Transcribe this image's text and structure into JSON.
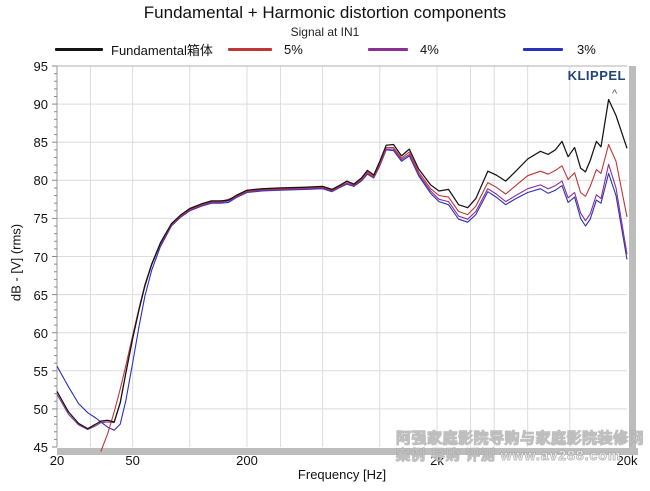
{
  "chart_data": {
    "type": "line",
    "title": "Fundamental + Harmonic distortion components",
    "subtitle": "Signal at IN1",
    "xlabel": "Frequency [Hz]",
    "ylabel": "dB - [V] (rms)",
    "x_scale": "log",
    "xlim": [
      20,
      20000
    ],
    "ylim": [
      45,
      95
    ],
    "grid": true,
    "legend_position": "top",
    "y_ticks": [
      95,
      90,
      85,
      80,
      75,
      70,
      65,
      60,
      55,
      50,
      45
    ],
    "x_tick_labels": [
      {
        "f": 20,
        "label": "20"
      },
      {
        "f": 50,
        "label": "50"
      },
      {
        "f": 200,
        "label": "200"
      },
      {
        "f": 2000,
        "label": "2k"
      },
      {
        "f": 20000,
        "label": "20k"
      }
    ],
    "grid_frequencies": [
      30,
      50,
      100,
      200,
      300,
      500,
      1000,
      2000,
      3000,
      4000,
      6000,
      10000
    ],
    "frequencies": [
      20,
      23,
      26,
      29,
      32,
      34,
      37,
      40,
      43,
      46,
      50,
      54,
      58,
      63,
      70,
      80,
      90,
      100,
      115,
      130,
      145,
      160,
      175,
      200,
      240,
      300,
      400,
      500,
      560,
      620,
      670,
      730,
      800,
      860,
      930,
      1000,
      1080,
      1180,
      1300,
      1430,
      1600,
      1850,
      2050,
      2300,
      2600,
      2900,
      3200,
      3700,
      4100,
      4600,
      5200,
      6000,
      7000,
      7700,
      8400,
      9100,
      9800,
      10600,
      11400,
      12100,
      12800,
      13800,
      14600,
      16000,
      17500,
      20000
    ],
    "series": [
      {
        "name": "Fundamental箱体",
        "color": "#141414",
        "values": [
          52.3,
          49.6,
          48.1,
          47.4,
          48.0,
          48.4,
          48.5,
          48.3,
          50.8,
          54.6,
          59.2,
          63.0,
          66.2,
          69.0,
          71.8,
          74.3,
          75.5,
          76.3,
          76.9,
          77.3,
          77.3,
          77.4,
          78.0,
          78.7,
          78.9,
          79.0,
          79.1,
          79.2,
          78.8,
          79.4,
          79.9,
          79.5,
          80.3,
          81.3,
          80.7,
          82.5,
          84.6,
          84.7,
          83.2,
          84.1,
          81.5,
          79.4,
          78.6,
          78.8,
          76.8,
          76.4,
          77.6,
          81.2,
          80.7,
          79.9,
          81.2,
          82.8,
          83.8,
          83.4,
          84.0,
          85.1,
          83.1,
          84.3,
          81.6,
          81.1,
          82.6,
          85.1,
          84.4,
          90.6,
          88.5,
          84.2
        ]
      },
      {
        "name": "5%",
        "color": "#c03636",
        "values": [
          null,
          null,
          null,
          null,
          null,
          44.4,
          46.8,
          49.6,
          52.6,
          55.6,
          59.6,
          63.2,
          66.3,
          69.0,
          71.7,
          74.2,
          75.4,
          76.2,
          76.8,
          77.2,
          77.2,
          77.5,
          77.9,
          78.6,
          78.8,
          78.9,
          79.0,
          79.1,
          78.7,
          79.3,
          79.8,
          79.4,
          80.1,
          81.1,
          80.5,
          82.2,
          84.3,
          84.3,
          82.9,
          83.7,
          81.1,
          78.9,
          78.0,
          77.8,
          75.9,
          75.5,
          76.6,
          79.7,
          79.1,
          78.2,
          79.3,
          80.6,
          81.2,
          80.8,
          81.3,
          81.9,
          80.1,
          81.0,
          78.4,
          77.9,
          79.2,
          81.4,
          80.9,
          84.7,
          82.5,
          75.2
        ]
      },
      {
        "name": "4%",
        "color": "#8b2f93",
        "values": [
          51.9,
          49.3,
          47.9,
          47.3,
          47.8,
          48.2,
          48.3,
          48.2,
          50.8,
          54.6,
          59.2,
          63.0,
          66.1,
          68.9,
          71.6,
          74.1,
          75.3,
          76.1,
          76.7,
          77.1,
          77.1,
          77.3,
          77.8,
          78.5,
          78.7,
          78.8,
          78.9,
          79.0,
          78.6,
          79.2,
          79.6,
          79.3,
          80.0,
          80.9,
          80.4,
          82.0,
          84.1,
          84.1,
          82.7,
          83.4,
          80.8,
          78.6,
          77.5,
          77.2,
          75.3,
          74.9,
          75.9,
          78.9,
          78.2,
          77.2,
          78.0,
          78.9,
          79.4,
          78.9,
          79.3,
          79.9,
          77.7,
          78.4,
          75.7,
          74.7,
          75.6,
          78.1,
          77.6,
          82.1,
          79.0,
          70.3
        ]
      },
      {
        "name": "3%",
        "color": "#2a31bd",
        "values": [
          55.6,
          52.9,
          50.7,
          49.5,
          48.8,
          48.3,
          47.6,
          47.2,
          48.0,
          51.0,
          56.0,
          60.8,
          64.8,
          68.2,
          71.3,
          74.0,
          75.2,
          76.0,
          76.6,
          77.0,
          77.0,
          77.1,
          77.7,
          78.4,
          78.6,
          78.7,
          78.8,
          78.9,
          78.5,
          79.1,
          79.5,
          79.2,
          79.9,
          80.8,
          80.3,
          81.9,
          84.0,
          83.9,
          82.5,
          83.2,
          80.6,
          78.3,
          77.2,
          76.8,
          74.9,
          74.5,
          75.5,
          78.5,
          77.8,
          76.8,
          77.6,
          78.4,
          78.9,
          78.3,
          78.7,
          79.3,
          77.1,
          77.8,
          75.0,
          74.0,
          74.9,
          77.4,
          77.0,
          80.9,
          78.0,
          69.6
        ]
      }
    ]
  },
  "brand": {
    "label": "KLIPPEL",
    "color": "#22437a"
  },
  "watermark": {
    "line1": "阿强家庭影院导购与家庭影院装修网",
    "line2": "案例 导购 评测  www.av288.com"
  }
}
